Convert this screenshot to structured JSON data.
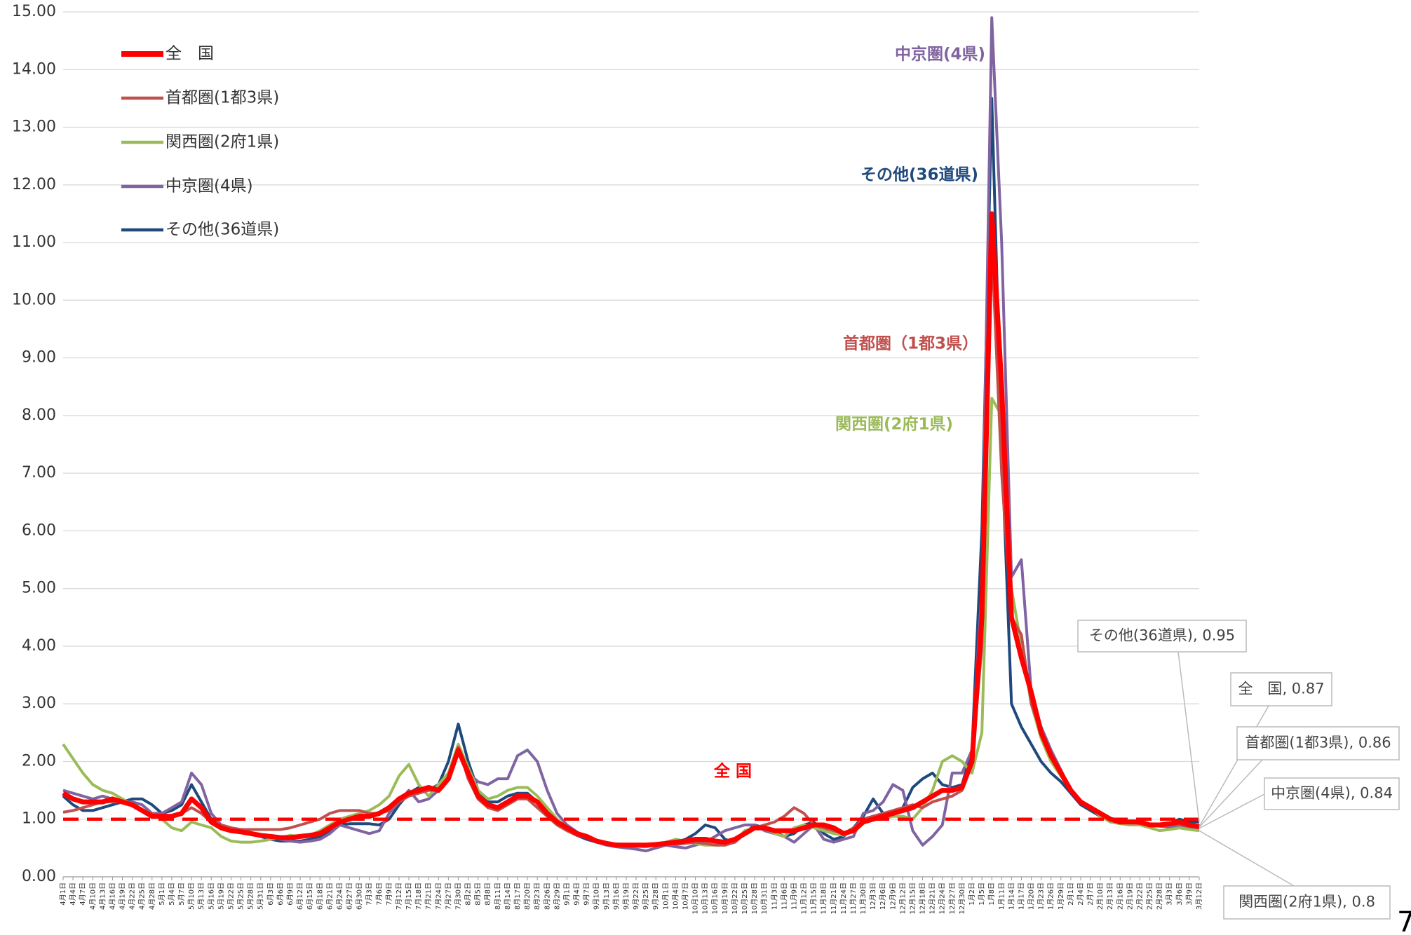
{
  "chart_data": {
    "type": "line",
    "categories": [
      "4月1日",
      "4月4日",
      "4月7日",
      "4月10日",
      "4月13日",
      "4月16日",
      "4月19日",
      "4月22日",
      "4月25日",
      "4月28日",
      "5月1日",
      "5月4日",
      "5月7日",
      "5月10日",
      "5月13日",
      "5月16日",
      "5月19日",
      "5月22日",
      "5月25日",
      "5月28日",
      "5月31日",
      "6月3日",
      "6月6日",
      "6月9日",
      "6月12日",
      "6月15日",
      "6月18日",
      "6月21日",
      "6月24日",
      "6月27日",
      "6月30日",
      "7月3日",
      "7月6日",
      "7月9日",
      "7月12日",
      "7月15日",
      "7月18日",
      "7月21日",
      "7月24日",
      "7月27日",
      "7月30日",
      "8月2日",
      "8月5日",
      "8月8日",
      "8月11日",
      "8月14日",
      "8月17日",
      "8月20日",
      "8月23日",
      "8月26日",
      "8月29日",
      "9月1日",
      "9月4日",
      "9月7日",
      "9月10日",
      "9月13日",
      "9月16日",
      "9月19日",
      "9月22日",
      "9月25日",
      "9月28日",
      "10月1日",
      "10月4日",
      "10月7日",
      "10月10日",
      "10月13日",
      "10月16日",
      "10月19日",
      "10月22日",
      "10月25日",
      "10月28日",
      "10月31日",
      "11月3日",
      "11月6日",
      "11月9日",
      "11月12日",
      "11月15日",
      "11月18日",
      "11月21日",
      "11月24日",
      "11月27日",
      "11月30日",
      "12月3日",
      "12月6日",
      "12月9日",
      "12月12日",
      "12月15日",
      "12月18日",
      "12月21日",
      "12月24日",
      "12月27日",
      "12月30日",
      "1月2日",
      "1月5日",
      "1月8日",
      "1月11日",
      "1月14日",
      "1月17日",
      "1月20日",
      "1月23日",
      "1月26日",
      "1月29日",
      "2月1日",
      "2月4日",
      "2月7日",
      "2月10日",
      "2月13日",
      "2月16日",
      "2月19日",
      "2月22日",
      "2月25日",
      "2月28日",
      "3月3日",
      "3月6日",
      "3月9日",
      "3月12日"
    ],
    "series": [
      {
        "name": "全　国",
        "color": "#ff0000",
        "values": [
          1.45,
          1.35,
          1.3,
          1.3,
          1.3,
          1.35,
          1.3,
          1.25,
          1.15,
          1.05,
          1.05,
          1.05,
          1.1,
          1.35,
          1.2,
          0.95,
          0.85,
          0.8,
          0.78,
          0.75,
          0.72,
          0.7,
          0.68,
          0.68,
          0.7,
          0.72,
          0.75,
          0.85,
          0.95,
          1.0,
          1.05,
          1.05,
          1.1,
          1.2,
          1.35,
          1.45,
          1.5,
          1.55,
          1.5,
          1.7,
          2.2,
          1.8,
          1.4,
          1.25,
          1.2,
          1.3,
          1.4,
          1.4,
          1.3,
          1.1,
          0.95,
          0.85,
          0.75,
          0.7,
          0.62,
          0.58,
          0.55,
          0.55,
          0.55,
          0.55,
          0.56,
          0.58,
          0.6,
          0.62,
          0.65,
          0.65,
          0.62,
          0.6,
          0.65,
          0.75,
          0.85,
          0.85,
          0.8,
          0.8,
          0.8,
          0.85,
          0.9,
          0.9,
          0.85,
          0.75,
          0.8,
          0.95,
          1.0,
          1.05,
          1.1,
          1.15,
          1.2,
          1.3,
          1.4,
          1.5,
          1.5,
          1.55,
          2.0,
          4.5,
          11.5,
          8.5,
          4.5,
          3.8,
          3.2,
          2.5,
          2.1,
          1.8,
          1.5,
          1.3,
          1.2,
          1.1,
          1.0,
          0.95,
          0.95,
          0.95,
          0.9,
          0.9,
          0.92,
          0.95,
          0.9,
          0.87
        ]
      },
      {
        "name": "首都圏(1都3県)",
        "color": "#c0504d",
        "values": [
          1.12,
          1.15,
          1.2,
          1.25,
          1.3,
          1.3,
          1.3,
          1.25,
          1.15,
          1.1,
          1.05,
          1.05,
          1.1,
          1.2,
          1.1,
          0.95,
          0.9,
          0.85,
          0.82,
          0.82,
          0.82,
          0.82,
          0.82,
          0.85,
          0.9,
          0.95,
          1.0,
          1.1,
          1.15,
          1.15,
          1.15,
          1.1,
          1.1,
          1.15,
          1.3,
          1.4,
          1.45,
          1.5,
          1.5,
          1.7,
          2.25,
          1.7,
          1.35,
          1.2,
          1.15,
          1.25,
          1.35,
          1.35,
          1.2,
          1.05,
          0.9,
          0.8,
          0.72,
          0.68,
          0.6,
          0.58,
          0.56,
          0.55,
          0.55,
          0.55,
          0.55,
          0.55,
          0.56,
          0.58,
          0.6,
          0.58,
          0.55,
          0.55,
          0.6,
          0.75,
          0.85,
          0.9,
          0.95,
          1.05,
          1.2,
          1.1,
          0.9,
          0.85,
          0.8,
          0.75,
          0.85,
          1.0,
          1.05,
          1.1,
          1.15,
          1.2,
          1.25,
          1.2,
          1.3,
          1.35,
          1.4,
          1.5,
          2.0,
          4.0,
          11.0,
          7.0,
          4.5,
          4.2,
          3.0,
          2.5,
          2.1,
          1.85,
          1.5,
          1.3,
          1.2,
          1.1,
          1.0,
          0.95,
          0.95,
          0.92,
          0.9,
          0.88,
          0.9,
          0.92,
          0.88,
          0.86
        ]
      },
      {
        "name": "関西圏(2府1県)",
        "color": "#9bbb59",
        "values": [
          2.3,
          2.05,
          1.8,
          1.6,
          1.5,
          1.45,
          1.35,
          1.25,
          1.15,
          1.1,
          1.0,
          0.85,
          0.8,
          0.95,
          0.9,
          0.85,
          0.7,
          0.62,
          0.6,
          0.6,
          0.62,
          0.65,
          0.68,
          0.72,
          0.7,
          0.72,
          0.8,
          0.9,
          1.0,
          1.05,
          1.1,
          1.15,
          1.25,
          1.4,
          1.75,
          1.95,
          1.6,
          1.4,
          1.6,
          1.8,
          2.3,
          1.9,
          1.5,
          1.35,
          1.4,
          1.5,
          1.55,
          1.55,
          1.4,
          1.2,
          1.0,
          0.85,
          0.75,
          0.7,
          0.62,
          0.58,
          0.55,
          0.55,
          0.53,
          0.52,
          0.55,
          0.6,
          0.65,
          0.62,
          0.58,
          0.55,
          0.55,
          0.55,
          0.62,
          0.8,
          0.85,
          0.85,
          0.75,
          0.7,
          0.85,
          0.9,
          0.85,
          0.8,
          0.75,
          0.72,
          0.8,
          1.0,
          1.05,
          1.0,
          1.05,
          1.05,
          1.0,
          1.2,
          1.5,
          2.0,
          2.1,
          2.0,
          1.8,
          2.5,
          8.3,
          8.0,
          5.0,
          4.0,
          3.0,
          2.4,
          2.0,
          1.75,
          1.5,
          1.3,
          1.2,
          1.05,
          0.95,
          0.92,
          0.9,
          0.9,
          0.85,
          0.8,
          0.82,
          0.85,
          0.82,
          0.8
        ]
      },
      {
        "name": "中京圏(4県)",
        "color": "#8064a2",
        "values": [
          1.5,
          1.45,
          1.4,
          1.35,
          1.4,
          1.35,
          1.3,
          1.3,
          1.25,
          1.1,
          1.1,
          1.2,
          1.3,
          1.8,
          1.6,
          1.1,
          0.9,
          0.85,
          0.8,
          0.75,
          0.72,
          0.7,
          0.65,
          0.62,
          0.6,
          0.62,
          0.65,
          0.75,
          0.9,
          0.85,
          0.8,
          0.75,
          0.8,
          1.1,
          1.3,
          1.5,
          1.3,
          1.35,
          1.5,
          1.7,
          2.15,
          1.8,
          1.65,
          1.6,
          1.7,
          1.7,
          2.1,
          2.2,
          2.0,
          1.5,
          1.1,
          0.9,
          0.78,
          0.68,
          0.6,
          0.55,
          0.52,
          0.5,
          0.48,
          0.45,
          0.5,
          0.55,
          0.52,
          0.5,
          0.55,
          0.6,
          0.7,
          0.8,
          0.85,
          0.9,
          0.9,
          0.8,
          0.75,
          0.7,
          0.6,
          0.75,
          0.9,
          0.65,
          0.6,
          0.65,
          0.7,
          1.1,
          1.15,
          1.3,
          1.6,
          1.5,
          0.8,
          0.55,
          0.7,
          0.9,
          1.8,
          1.8,
          2.2,
          5.0,
          14.9,
          11.0,
          5.2,
          5.5,
          3.2,
          2.6,
          2.2,
          1.85,
          1.5,
          1.3,
          1.2,
          1.1,
          1.0,
          0.95,
          0.95,
          0.92,
          0.9,
          0.88,
          0.86,
          0.88,
          0.85,
          0.84
        ]
      },
      {
        "name": "その他(36道県)",
        "color": "#1f497d",
        "values": [
          1.4,
          1.25,
          1.15,
          1.15,
          1.2,
          1.25,
          1.3,
          1.35,
          1.35,
          1.25,
          1.1,
          1.15,
          1.25,
          1.6,
          1.3,
          1.0,
          0.9,
          0.85,
          0.8,
          0.75,
          0.7,
          0.65,
          0.62,
          0.62,
          0.62,
          0.65,
          0.7,
          0.8,
          0.9,
          0.92,
          0.92,
          0.92,
          0.9,
          1.0,
          1.25,
          1.45,
          1.55,
          1.5,
          1.6,
          2.0,
          2.65,
          2.0,
          1.5,
          1.3,
          1.3,
          1.4,
          1.45,
          1.45,
          1.3,
          1.1,
          0.95,
          0.82,
          0.72,
          0.65,
          0.6,
          0.58,
          0.57,
          0.56,
          0.55,
          0.55,
          0.55,
          0.58,
          0.6,
          0.65,
          0.75,
          0.9,
          0.85,
          0.65,
          0.6,
          0.75,
          0.9,
          0.85,
          0.78,
          0.7,
          0.75,
          0.9,
          0.95,
          0.75,
          0.65,
          0.7,
          0.85,
          1.05,
          1.35,
          1.1,
          1.1,
          1.2,
          1.55,
          1.7,
          1.8,
          1.6,
          1.55,
          1.6,
          2.2,
          6.0,
          13.5,
          7.5,
          3.0,
          2.6,
          2.3,
          2.0,
          1.8,
          1.65,
          1.45,
          1.25,
          1.15,
          1.05,
          1.0,
          0.95,
          0.95,
          0.92,
          0.9,
          0.88,
          0.92,
          1.0,
          0.95,
          0.95
        ]
      }
    ],
    "ylim": [
      0,
      15
    ],
    "yticks": [
      {
        "value": 0,
        "label": "0.00"
      },
      {
        "value": 1,
        "label": "1.00"
      },
      {
        "value": 2,
        "label": "2.00"
      },
      {
        "value": 3,
        "label": "3.00"
      },
      {
        "value": 4,
        "label": "4.00"
      },
      {
        "value": 5,
        "label": "5.00"
      },
      {
        "value": 6,
        "label": "6.00"
      },
      {
        "value": 7,
        "label": "7.00"
      },
      {
        "value": 8,
        "label": "8.00"
      },
      {
        "value": 9,
        "label": "9.00"
      },
      {
        "value": 10,
        "label": "10.00"
      },
      {
        "value": 11,
        "label": "11.00"
      },
      {
        "value": 12,
        "label": "12.00"
      },
      {
        "value": 13,
        "label": "13.00"
      },
      {
        "value": 14,
        "label": "14.00"
      },
      {
        "value": 15,
        "label": "15.00"
      }
    ],
    "grid": true,
    "reference_line": {
      "value": 1,
      "color": "#ff0000"
    },
    "annotations": [
      {
        "text": "中京圏(4県)",
        "color": "#8064a2"
      },
      {
        "text": "その他(36道県)",
        "color": "#1f497d"
      },
      {
        "text": "首都圏（1都3県）",
        "color": "#c0504d"
      },
      {
        "text": "関西圏(2府1県)",
        "color": "#9bbb59"
      },
      {
        "text": "全 国",
        "color": "#ff0000"
      }
    ],
    "legend": "upper left",
    "page_number": "7"
  }
}
